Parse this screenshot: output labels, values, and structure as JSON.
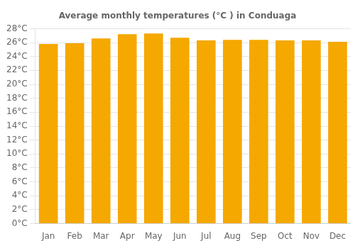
{
  "chart_data": {
    "type": "bar",
    "title": "Average monthly temperatures (°C ) in Conduaga",
    "categories": [
      "Jan",
      "Feb",
      "Mar",
      "Apr",
      "May",
      "Jun",
      "Jul",
      "Aug",
      "Sep",
      "Oct",
      "Nov",
      "Dec"
    ],
    "values": [
      25.8,
      25.9,
      26.6,
      27.2,
      27.3,
      26.7,
      26.3,
      26.4,
      26.4,
      26.3,
      26.3,
      26.1
    ],
    "color": "#F5A800",
    "ylim": [
      0,
      28
    ],
    "yticks": [
      {
        "value": 0,
        "label": "0°C"
      },
      {
        "value": 2,
        "label": "2°C"
      },
      {
        "value": 4,
        "label": "4°C"
      },
      {
        "value": 6,
        "label": "6°C"
      },
      {
        "value": 8,
        "label": "8°C"
      },
      {
        "value": 10,
        "label": "10°C"
      },
      {
        "value": 12,
        "label": "12°C"
      },
      {
        "value": 14,
        "label": "14°C"
      },
      {
        "value": 16,
        "label": "16°C"
      },
      {
        "value": 18,
        "label": "18°C"
      },
      {
        "value": 20,
        "label": "20°C"
      },
      {
        "value": 22,
        "label": "22°C"
      },
      {
        "value": 24,
        "label": "24°C"
      },
      {
        "value": 26,
        "label": "26°C"
      },
      {
        "value": 28,
        "label": "28°C"
      }
    ],
    "grid": true
  }
}
